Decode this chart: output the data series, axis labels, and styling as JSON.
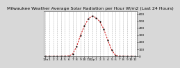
{
  "title": "Milwaukee Weather Average Solar Radiation per Hour W/m2 (Last 24 Hours)",
  "x_hours": [
    0,
    1,
    2,
    3,
    4,
    5,
    6,
    7,
    8,
    9,
    10,
    11,
    12,
    13,
    14,
    15,
    16,
    17,
    18,
    19,
    20,
    21,
    22,
    23
  ],
  "y_values": [
    0,
    0,
    0,
    0,
    0,
    2,
    5,
    35,
    140,
    300,
    430,
    530,
    570,
    545,
    490,
    380,
    230,
    90,
    15,
    3,
    0,
    0,
    0,
    0
  ],
  "line_color": "#cc0000",
  "bg_color": "#d8d8d8",
  "plot_bg": "#ffffff",
  "grid_color": "#aaaaaa",
  "ylim": [
    0,
    640
  ],
  "xlim_min": -0.5,
  "xlim_max": 23.5,
  "yticks": [
    0,
    100,
    200,
    300,
    400,
    500,
    600
  ],
  "xtick_labels": [
    "12a",
    "1",
    "2",
    "3",
    "4",
    "5",
    "6",
    "7",
    "8",
    "9",
    "10",
    "11",
    "12p",
    "1",
    "2",
    "3",
    "4",
    "5",
    "6",
    "7",
    "8",
    "9",
    "10",
    "11"
  ],
  "title_fontsize": 4.5,
  "tick_fontsize": 3.2
}
